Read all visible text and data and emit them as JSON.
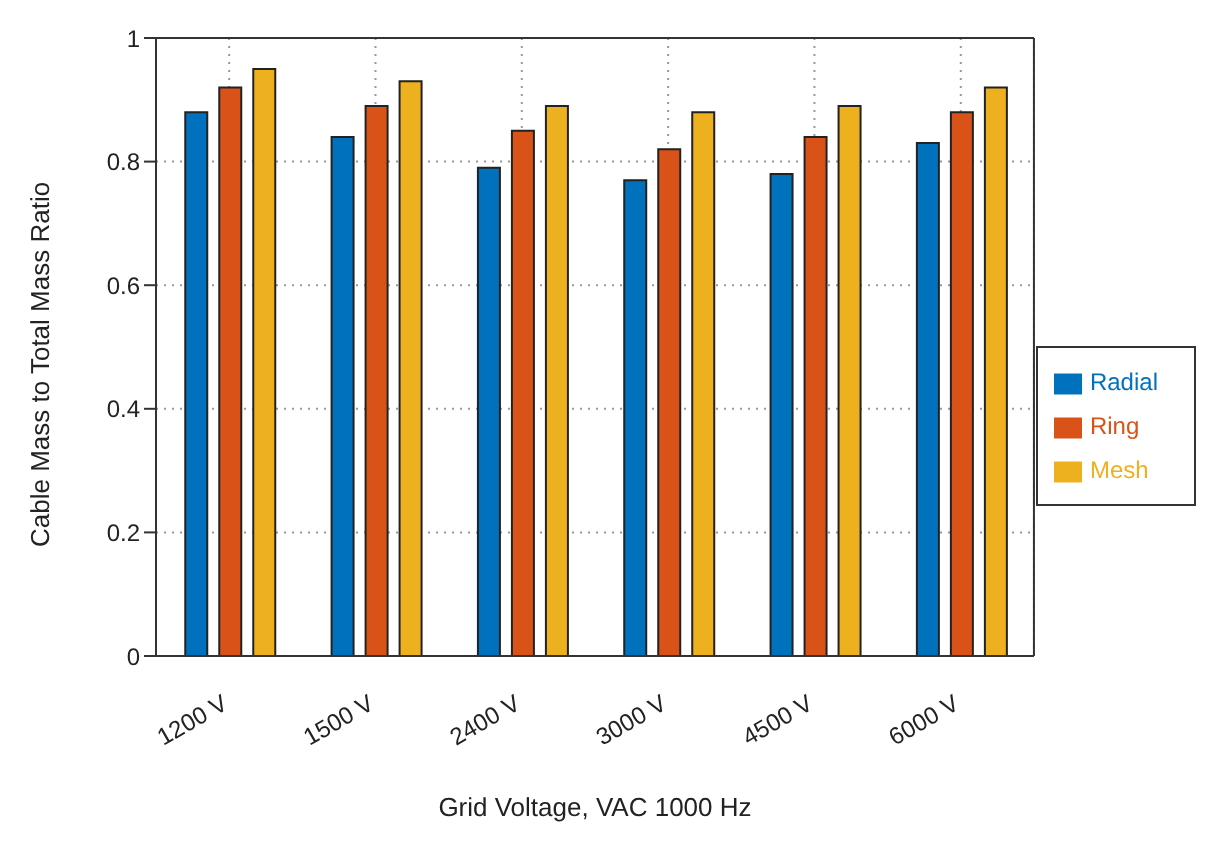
{
  "chart_data": {
    "type": "bar",
    "xlabel": "Grid Voltage, VAC 1000 Hz",
    "ylabel": "Cable Mass to Total Mass Ratio",
    "categories": [
      "1200 V",
      "1500 V",
      "2400 V",
      "3000 V",
      "4500 V",
      "6000 V"
    ],
    "series": [
      {
        "name": "Radial",
        "color": "#0072bd",
        "values": [
          0.88,
          0.84,
          0.79,
          0.77,
          0.78,
          0.83
        ]
      },
      {
        "name": "Ring",
        "color": "#d95319",
        "values": [
          0.92,
          0.89,
          0.85,
          0.82,
          0.84,
          0.88
        ]
      },
      {
        "name": "Mesh",
        "color": "#edb120",
        "values": [
          0.95,
          0.93,
          0.89,
          0.88,
          0.89,
          0.92
        ]
      }
    ],
    "ylim": [
      0,
      1
    ],
    "yticks": [
      0,
      {
        "value": 0.2,
        "label": "0.2"
      },
      {
        "value": 0.4,
        "label": "0.4"
      },
      {
        "value": 0.6,
        "label": "0.6"
      },
      {
        "value": 0.8,
        "label": "0.8"
      },
      1
    ],
    "grid": true,
    "legend": "right"
  }
}
